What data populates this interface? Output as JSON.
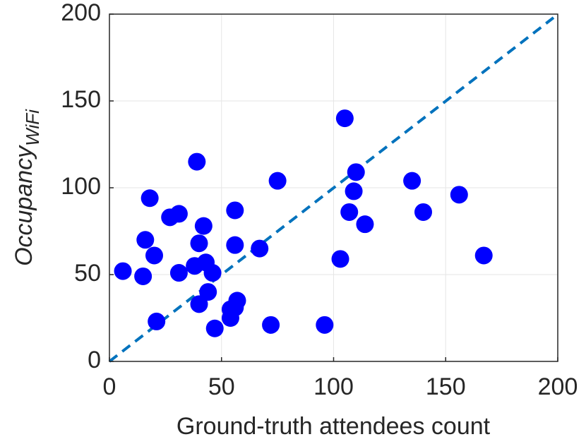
{
  "chart_data": {
    "type": "scatter",
    "xlabel": "Ground-truth attendees count",
    "ylabel": "Occupancy",
    "ylabel_subscript": "WiFi",
    "color": "#0000ff",
    "reference_line_color": "#0072bd",
    "grid": true,
    "xlim": [
      0,
      200
    ],
    "ylim": [
      0,
      200
    ],
    "xticks": [
      0,
      50,
      100,
      150,
      200
    ],
    "yticks": [
      0,
      50,
      100,
      150,
      200
    ],
    "x": [
      6,
      16,
      15,
      18,
      20,
      21,
      27,
      31,
      31,
      39,
      38,
      40,
      42,
      43,
      40,
      44,
      46,
      47,
      56,
      56,
      54,
      54,
      56,
      57,
      67,
      72,
      75,
      96,
      103,
      105,
      107,
      109,
      110,
      114,
      135,
      140,
      156,
      167
    ],
    "values": [
      52,
      70,
      49,
      94,
      61,
      23,
      83,
      85,
      51,
      115,
      55,
      68,
      78,
      57,
      33,
      40,
      51,
      19,
      87,
      67,
      25,
      30,
      31,
      35,
      65,
      21,
      104,
      21,
      59,
      140,
      86,
      98,
      109,
      79,
      104,
      86,
      96,
      61
    ]
  }
}
